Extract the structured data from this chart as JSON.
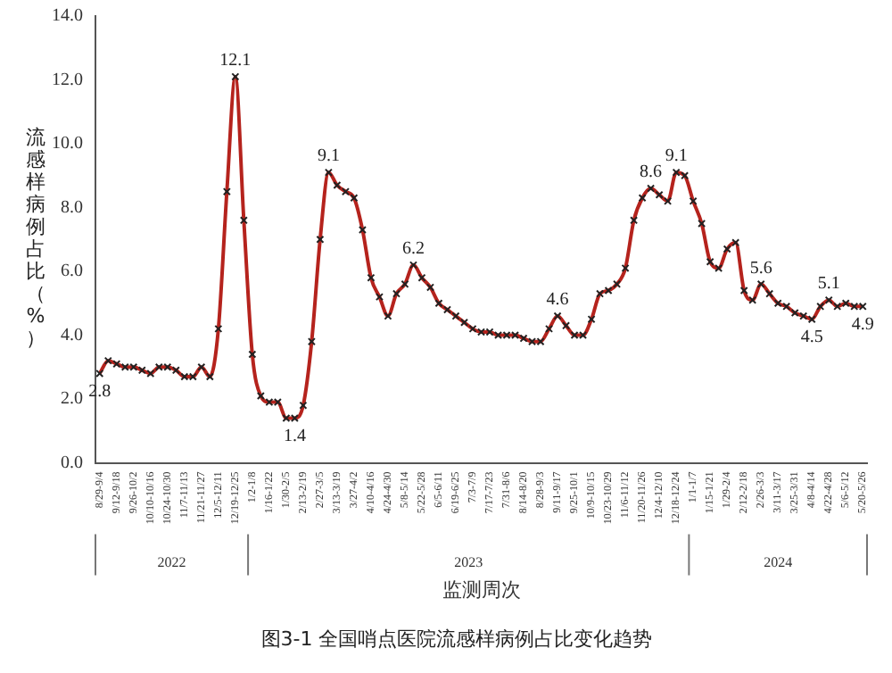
{
  "chart_data": {
    "type": "line",
    "title": "图3-1 全国哨点医院流感样病例占比变化趋势",
    "xlabel": "监测周次",
    "ylabel": "流感样病例占比（%）",
    "categories": [
      "8/29-9/4",
      null,
      "9/12-9/18",
      null,
      "9/26-10/2",
      null,
      "10/10-10/16",
      null,
      "10/24-10/30",
      null,
      "11/7-11/13",
      null,
      "11/21-11/27",
      null,
      "12/5-12/11",
      null,
      "12/19-12/25",
      null,
      "1/2-1/8",
      null,
      "1/16-1/22",
      null,
      "1/30-2/5",
      null,
      "2/13-2/19",
      null,
      "2/27-3/5",
      null,
      "3/13-3/19",
      null,
      "3/27-4/2",
      null,
      "4/10-4/16",
      null,
      "4/24-4/30",
      null,
      "5/8-5/14",
      null,
      "5/22-5/28",
      null,
      "6/5-6/11",
      null,
      "6/19-6/25",
      null,
      "7/3-7/9",
      null,
      "7/17-7/23",
      null,
      "7/31-8/6",
      null,
      "8/14-8/20",
      null,
      "8/28-9/3",
      null,
      "9/11-9/17",
      null,
      "9/25-10/1",
      null,
      "10/9-10/15",
      null,
      "10/23-10/29",
      null,
      "11/6-11/12",
      null,
      "11/20-11/26",
      null,
      "12/4-12/10",
      null,
      "12/18-12/24",
      null,
      "1/1-1/7",
      null,
      "1/15-1/21",
      null,
      "1/29-2/4",
      null,
      "2/12-2/18",
      null,
      "2/26-3/3",
      null,
      "3/11-3/17",
      null,
      "3/25-3/31",
      null,
      "4/8-4/14",
      null,
      "4/22-4/28",
      null,
      "5/6-5/12",
      null,
      "5/20-5/26"
    ],
    "series": [
      {
        "color": "#b5231d",
        "values": [
          2.8,
          3.2,
          3.1,
          3.0,
          3.0,
          2.9,
          2.8,
          3.0,
          3.0,
          2.9,
          2.7,
          2.7,
          3.0,
          2.7,
          4.2,
          8.5,
          12.1,
          7.6,
          3.4,
          2.1,
          1.9,
          1.9,
          1.4,
          1.4,
          1.8,
          3.8,
          7.0,
          9.1,
          8.7,
          8.5,
          8.3,
          7.3,
          5.8,
          5.2,
          4.6,
          5.3,
          5.6,
          6.2,
          5.8,
          5.5,
          5.0,
          4.8,
          4.6,
          4.4,
          4.2,
          4.1,
          4.1,
          4.0,
          4.0,
          4.0,
          3.9,
          3.8,
          3.8,
          4.2,
          4.6,
          4.3,
          4.0,
          4.0,
          4.5,
          5.3,
          5.4,
          5.6,
          6.1,
          7.6,
          8.3,
          8.6,
          8.4,
          8.2,
          9.1,
          9.0,
          8.2,
          7.5,
          6.3,
          6.1,
          6.7,
          6.9,
          5.4,
          5.1,
          5.6,
          5.3,
          5.0,
          4.9,
          4.7,
          4.6,
          4.5,
          4.9,
          5.1,
          4.9,
          5.0,
          4.9,
          4.9
        ],
        "value_labels": [
          "2.8",
          null,
          null,
          null,
          null,
          null,
          null,
          null,
          null,
          null,
          null,
          null,
          null,
          null,
          null,
          null,
          "12.1",
          null,
          null,
          null,
          null,
          null,
          null,
          "1.4",
          null,
          null,
          null,
          "9.1",
          null,
          null,
          null,
          null,
          null,
          null,
          null,
          null,
          null,
          "6.2",
          null,
          null,
          null,
          null,
          null,
          null,
          null,
          null,
          null,
          null,
          null,
          null,
          null,
          null,
          null,
          null,
          "4.6",
          null,
          null,
          null,
          null,
          null,
          null,
          null,
          null,
          null,
          null,
          "8.6",
          null,
          null,
          "9.1",
          null,
          null,
          null,
          null,
          null,
          null,
          null,
          null,
          null,
          "5.6",
          null,
          null,
          null,
          null,
          null,
          "4.5",
          null,
          "5.1",
          null,
          null,
          null,
          "4.9"
        ]
      }
    ],
    "ylim": [
      0,
      14
    ],
    "yticks": [
      {
        "value": 0,
        "label": "0.0"
      },
      {
        "value": 2,
        "label": "2.0"
      },
      {
        "value": 4,
        "label": "4.0"
      },
      {
        "value": 6,
        "label": "6.0"
      },
      {
        "value": 8,
        "label": "8.0"
      },
      {
        "value": 10,
        "label": "10.0"
      },
      {
        "value": 12,
        "label": "12.0"
      },
      {
        "value": 14,
        "label": "14.0"
      }
    ],
    "annotations": [
      "2022",
      "2023",
      "2024"
    ],
    "marker": "cross",
    "line_style": "solid",
    "grid": false,
    "legend": false
  }
}
